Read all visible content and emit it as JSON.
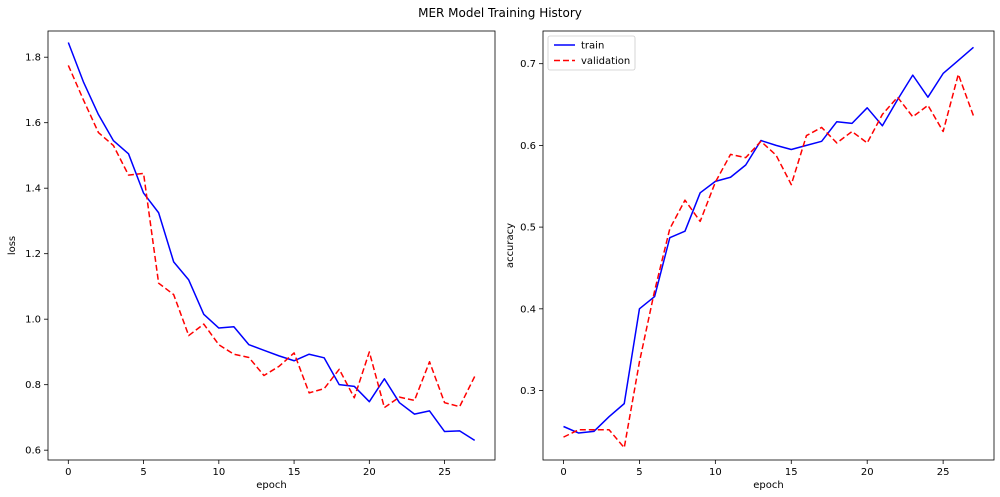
{
  "figure": {
    "title": "MER Model Training History"
  },
  "chart_data": [
    {
      "type": "line",
      "title": "",
      "xlabel": "epoch",
      "ylabel": "loss",
      "xlim": [
        -1.35,
        28.35
      ],
      "ylim": [
        0.57,
        1.88
      ],
      "xticks": [
        0,
        5,
        10,
        15,
        20,
        25
      ],
      "yticks": [
        0.6,
        0.8,
        1.0,
        1.2,
        1.4,
        1.6,
        1.8
      ],
      "ytick_labels": [
        "0.6",
        "0.8",
        "1.0",
        "1.2",
        "1.4",
        "1.6",
        "1.8"
      ],
      "grid": false,
      "x": [
        0,
        1,
        2,
        3,
        4,
        5,
        6,
        7,
        8,
        9,
        10,
        11,
        12,
        13,
        14,
        15,
        16,
        17,
        18,
        19,
        20,
        21,
        22,
        23,
        24,
        25,
        26,
        27
      ],
      "series": [
        {
          "name": "train",
          "color": "#0000ff",
          "dash": "solid",
          "values": [
            1.845,
            1.725,
            1.625,
            1.545,
            1.505,
            1.385,
            1.325,
            1.175,
            1.12,
            1.015,
            0.973,
            0.977,
            0.922,
            0.905,
            0.888,
            0.873,
            0.893,
            0.882,
            0.8,
            0.795,
            0.748,
            0.818,
            0.745,
            0.71,
            0.72,
            0.657,
            0.659,
            0.63
          ]
        },
        {
          "name": "validation",
          "color": "#ff0000",
          "dash": "dashed",
          "values": [
            1.775,
            1.67,
            1.57,
            1.53,
            1.44,
            1.445,
            1.11,
            1.075,
            0.95,
            0.985,
            0.922,
            0.893,
            0.883,
            0.828,
            0.856,
            0.897,
            0.775,
            0.788,
            0.847,
            0.76,
            0.9,
            0.73,
            0.762,
            0.752,
            0.87,
            0.745,
            0.733,
            0.825
          ]
        }
      ]
    },
    {
      "type": "line",
      "title": "",
      "xlabel": "epoch",
      "ylabel": "accuracy",
      "xlim": [
        -1.35,
        28.35
      ],
      "ylim": [
        0.215,
        0.74
      ],
      "xticks": [
        0,
        5,
        10,
        15,
        20,
        25
      ],
      "yticks": [
        0.3,
        0.4,
        0.5,
        0.6,
        0.7
      ],
      "ytick_labels": [
        "0.3",
        "0.4",
        "0.5",
        "0.6",
        "0.7"
      ],
      "grid": false,
      "legend": {
        "placement": "upper-left",
        "entries": [
          "train",
          "validation"
        ]
      },
      "x": [
        0,
        1,
        2,
        3,
        4,
        5,
        6,
        7,
        8,
        9,
        10,
        11,
        12,
        13,
        14,
        15,
        16,
        17,
        18,
        19,
        20,
        21,
        22,
        23,
        24,
        25,
        26,
        27
      ],
      "series": [
        {
          "name": "train",
          "color": "#0000ff",
          "dash": "solid",
          "values": [
            0.256,
            0.248,
            0.25,
            0.268,
            0.284,
            0.4,
            0.415,
            0.487,
            0.495,
            0.542,
            0.556,
            0.561,
            0.576,
            0.606,
            0.6,
            0.595,
            0.6,
            0.605,
            0.629,
            0.627,
            0.646,
            0.624,
            0.656,
            0.686,
            0.659,
            0.688,
            0.704,
            0.72
          ]
        },
        {
          "name": "validation",
          "color": "#ff0000",
          "dash": "dashed",
          "values": [
            0.243,
            0.252,
            0.252,
            0.252,
            0.23,
            0.335,
            0.422,
            0.498,
            0.533,
            0.507,
            0.555,
            0.589,
            0.585,
            0.605,
            0.588,
            0.552,
            0.612,
            0.622,
            0.603,
            0.617,
            0.603,
            0.638,
            0.659,
            0.635,
            0.649,
            0.617,
            0.687,
            0.636
          ]
        }
      ]
    }
  ]
}
